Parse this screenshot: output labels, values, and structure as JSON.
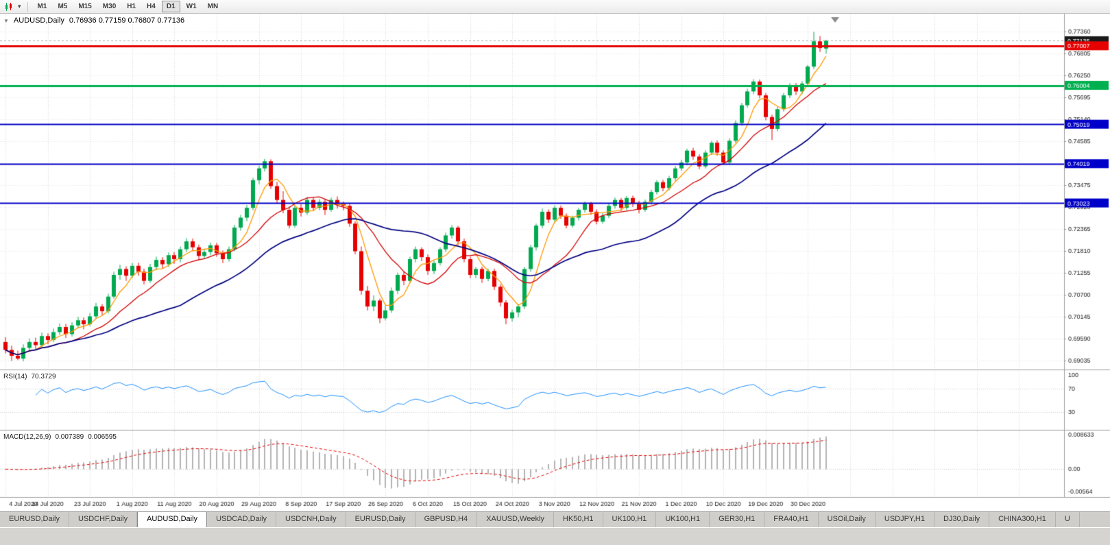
{
  "toolbar": {
    "timeframes": [
      "M1",
      "M5",
      "M15",
      "M30",
      "H1",
      "H4",
      "D1",
      "W1",
      "MN"
    ],
    "active_timeframe": "D1",
    "active_index": 6
  },
  "chart": {
    "title_symbol": "AUDUSD,Daily",
    "title_ohlc": "0.76936 0.77159 0.76807 0.77136",
    "colors": {
      "up": "#00a94f",
      "down": "#e60000",
      "background": "#ffffff",
      "grid": "#d9d9d9"
    },
    "price_axis": [
      "0.77360",
      "0.76805",
      "0.76250",
      "0.75695",
      "0.75140",
      "0.74585",
      "0.74030",
      "0.73475",
      "0.72920",
      "0.72365",
      "0.71810",
      "0.71255",
      "0.70700",
      "0.70145",
      "0.69590",
      "0.69035"
    ],
    "bid": {
      "value": 0.77135,
      "label": "0.77135",
      "color": "#1a1a1a"
    },
    "hlines": [
      {
        "value": 0.77007,
        "label": "0.77007",
        "color": "#e60000",
        "width": 3
      },
      {
        "value": 0.76004,
        "label": "0.76004",
        "color": "#00b050",
        "width": 3
      },
      {
        "value": 0.75019,
        "label": "0.75019",
        "color": "#0000c8",
        "width": 2
      },
      {
        "value": 0.74019,
        "label": "0.74019",
        "color": "#0000c8",
        "width": 2
      },
      {
        "value": 0.73023,
        "label": "0.73023",
        "color": "#0000c8",
        "width": 2
      }
    ],
    "mas": [
      {
        "period": 5,
        "color": "#ff9900",
        "width": 1.3
      },
      {
        "period": 12,
        "color": "#d40000",
        "width": 1.3
      },
      {
        "period": 30,
        "color": "#000080",
        "width": 1.7
      }
    ],
    "date_labels": [
      "4 Jul 2020",
      "14 Jul 2020",
      "23 Jul 2020",
      "1 Aug 2020",
      "11 Aug 2020",
      "20 Aug 2020",
      "29 Aug 2020",
      "8 Sep 2020",
      "17 Sep 2020",
      "26 Sep 2020",
      "6 Oct 2020",
      "15 Oct 2020",
      "24 Oct 2020",
      "3 Nov 2020",
      "12 Nov 2020",
      "21 Nov 2020",
      "1 Dec 2020",
      "10 Dec 2020",
      "19 Dec 2020",
      "30 Dec 2020"
    ],
    "candles": [
      [
        0.695,
        0.6962,
        0.6921,
        0.693
      ],
      [
        0.693,
        0.6941,
        0.6902,
        0.6915
      ],
      [
        0.6915,
        0.6928,
        0.6904,
        0.6908
      ],
      [
        0.6908,
        0.6944,
        0.6901,
        0.6935
      ],
      [
        0.6935,
        0.6959,
        0.6928,
        0.695
      ],
      [
        0.695,
        0.6961,
        0.693,
        0.6942
      ],
      [
        0.6942,
        0.6974,
        0.6936,
        0.6965
      ],
      [
        0.6965,
        0.6972,
        0.6944,
        0.6955
      ],
      [
        0.6955,
        0.6984,
        0.695,
        0.6975
      ],
      [
        0.6975,
        0.6997,
        0.6968,
        0.6988
      ],
      [
        0.6988,
        0.6996,
        0.696,
        0.697
      ],
      [
        0.697,
        0.7,
        0.6964,
        0.6992
      ],
      [
        0.6992,
        0.7014,
        0.6985,
        0.7005
      ],
      [
        0.7005,
        0.7012,
        0.6982,
        0.6995
      ],
      [
        0.6995,
        0.7023,
        0.699,
        0.7015
      ],
      [
        0.7015,
        0.7049,
        0.7008,
        0.704
      ],
      [
        0.704,
        0.7046,
        0.7018,
        0.7028
      ],
      [
        0.7028,
        0.7072,
        0.7022,
        0.7065
      ],
      [
        0.7065,
        0.7128,
        0.706,
        0.712
      ],
      [
        0.712,
        0.7146,
        0.7108,
        0.7135
      ],
      [
        0.7135,
        0.7142,
        0.7105,
        0.7118
      ],
      [
        0.7118,
        0.715,
        0.7112,
        0.7143
      ],
      [
        0.7143,
        0.7151,
        0.7118,
        0.7128
      ],
      [
        0.7128,
        0.7136,
        0.7096,
        0.7105
      ],
      [
        0.7105,
        0.7148,
        0.71,
        0.714
      ],
      [
        0.714,
        0.7166,
        0.7132,
        0.7158
      ],
      [
        0.7158,
        0.7165,
        0.7136,
        0.7147
      ],
      [
        0.7147,
        0.7177,
        0.714,
        0.717
      ],
      [
        0.717,
        0.7178,
        0.7148,
        0.716
      ],
      [
        0.716,
        0.7192,
        0.7152,
        0.7185
      ],
      [
        0.7185,
        0.7213,
        0.7178,
        0.7205
      ],
      [
        0.7205,
        0.7212,
        0.718,
        0.719
      ],
      [
        0.719,
        0.7197,
        0.7158,
        0.7168
      ],
      [
        0.7168,
        0.7186,
        0.716,
        0.7178
      ],
      [
        0.7178,
        0.7202,
        0.717,
        0.7195
      ],
      [
        0.7195,
        0.7201,
        0.7166,
        0.7175
      ],
      [
        0.7175,
        0.7182,
        0.715,
        0.716
      ],
      [
        0.716,
        0.7192,
        0.7154,
        0.7185
      ],
      [
        0.7185,
        0.7247,
        0.718,
        0.724
      ],
      [
        0.724,
        0.7272,
        0.7232,
        0.7265
      ],
      [
        0.7265,
        0.7297,
        0.7256,
        0.729
      ],
      [
        0.729,
        0.7366,
        0.7284,
        0.736
      ],
      [
        0.736,
        0.7397,
        0.735,
        0.739
      ],
      [
        0.739,
        0.7414,
        0.7382,
        0.7408
      ],
      [
        0.7408,
        0.7413,
        0.7338,
        0.7345
      ],
      [
        0.7345,
        0.7356,
        0.7302,
        0.731
      ],
      [
        0.731,
        0.7332,
        0.7276,
        0.7285
      ],
      [
        0.7285,
        0.7294,
        0.7238,
        0.7245
      ],
      [
        0.7245,
        0.7295,
        0.724,
        0.729
      ],
      [
        0.729,
        0.7299,
        0.7268,
        0.7278
      ],
      [
        0.7278,
        0.7318,
        0.7272,
        0.731
      ],
      [
        0.731,
        0.7316,
        0.7282,
        0.729
      ],
      [
        0.729,
        0.7312,
        0.7284,
        0.7305
      ],
      [
        0.7305,
        0.7311,
        0.7272,
        0.7285
      ],
      [
        0.7285,
        0.7316,
        0.728,
        0.731
      ],
      [
        0.731,
        0.7319,
        0.7288,
        0.73
      ],
      [
        0.73,
        0.7306,
        0.7284,
        0.7295
      ],
      [
        0.7295,
        0.7302,
        0.7242,
        0.725
      ],
      [
        0.725,
        0.7256,
        0.7172,
        0.718
      ],
      [
        0.718,
        0.7192,
        0.707,
        0.708
      ],
      [
        0.708,
        0.7092,
        0.703,
        0.704
      ],
      [
        0.704,
        0.7068,
        0.7028,
        0.7055
      ],
      [
        0.7055,
        0.706,
        0.6998,
        0.701
      ],
      [
        0.701,
        0.7042,
        0.7005,
        0.703
      ],
      [
        0.703,
        0.7088,
        0.7024,
        0.708
      ],
      [
        0.708,
        0.7126,
        0.7072,
        0.712
      ],
      [
        0.712,
        0.7128,
        0.7094,
        0.7105
      ],
      [
        0.7105,
        0.7166,
        0.71,
        0.716
      ],
      [
        0.716,
        0.7192,
        0.7152,
        0.7185
      ],
      [
        0.7185,
        0.719,
        0.7155,
        0.7165
      ],
      [
        0.7165,
        0.7172,
        0.712,
        0.713
      ],
      [
        0.713,
        0.7156,
        0.7122,
        0.715
      ],
      [
        0.715,
        0.719,
        0.7144,
        0.7185
      ],
      [
        0.7185,
        0.7227,
        0.7178,
        0.722
      ],
      [
        0.722,
        0.7246,
        0.7212,
        0.724
      ],
      [
        0.724,
        0.7244,
        0.7196,
        0.7205
      ],
      [
        0.7205,
        0.7212,
        0.7152,
        0.716
      ],
      [
        0.716,
        0.7166,
        0.7112,
        0.712
      ],
      [
        0.712,
        0.714,
        0.7112,
        0.7135
      ],
      [
        0.7135,
        0.7141,
        0.71,
        0.711
      ],
      [
        0.711,
        0.7136,
        0.7104,
        0.713
      ],
      [
        0.713,
        0.7136,
        0.7082,
        0.709
      ],
      [
        0.709,
        0.7096,
        0.704,
        0.705
      ],
      [
        0.705,
        0.7056,
        0.6995,
        0.701
      ],
      [
        0.701,
        0.7032,
        0.7002,
        0.7025
      ],
      [
        0.7025,
        0.7046,
        0.7012,
        0.704
      ],
      [
        0.704,
        0.714,
        0.7034,
        0.7135
      ],
      [
        0.7135,
        0.7196,
        0.7128,
        0.719
      ],
      [
        0.719,
        0.725,
        0.7182,
        0.7245
      ],
      [
        0.7245,
        0.7288,
        0.7238,
        0.728
      ],
      [
        0.728,
        0.7286,
        0.7252,
        0.726
      ],
      [
        0.726,
        0.7296,
        0.7254,
        0.729
      ],
      [
        0.729,
        0.7296,
        0.7262,
        0.727
      ],
      [
        0.727,
        0.7276,
        0.7238,
        0.7245
      ],
      [
        0.7245,
        0.727,
        0.724,
        0.7265
      ],
      [
        0.7265,
        0.729,
        0.7258,
        0.7285
      ],
      [
        0.7285,
        0.7306,
        0.7278,
        0.73
      ],
      [
        0.73,
        0.7305,
        0.7272,
        0.728
      ],
      [
        0.728,
        0.7286,
        0.7248,
        0.7255
      ],
      [
        0.7255,
        0.7276,
        0.725,
        0.727
      ],
      [
        0.727,
        0.73,
        0.7264,
        0.7295
      ],
      [
        0.7295,
        0.7316,
        0.7288,
        0.731
      ],
      [
        0.731,
        0.7315,
        0.7282,
        0.729
      ],
      [
        0.729,
        0.732,
        0.7284,
        0.7315
      ],
      [
        0.7315,
        0.7321,
        0.7292,
        0.73
      ],
      [
        0.73,
        0.7308,
        0.7276,
        0.7285
      ],
      [
        0.7285,
        0.7311,
        0.728,
        0.7305
      ],
      [
        0.7305,
        0.7336,
        0.7298,
        0.733
      ],
      [
        0.733,
        0.736,
        0.7324,
        0.7355
      ],
      [
        0.7355,
        0.7361,
        0.7332,
        0.734
      ],
      [
        0.734,
        0.7371,
        0.7334,
        0.7365
      ],
      [
        0.7365,
        0.7396,
        0.7358,
        0.739
      ],
      [
        0.739,
        0.7412,
        0.7384,
        0.7405
      ],
      [
        0.7405,
        0.744,
        0.7398,
        0.7435
      ],
      [
        0.7435,
        0.7442,
        0.7412,
        0.742
      ],
      [
        0.742,
        0.7426,
        0.7388,
        0.7395
      ],
      [
        0.7395,
        0.7436,
        0.739,
        0.743
      ],
      [
        0.743,
        0.746,
        0.7424,
        0.7455
      ],
      [
        0.7455,
        0.7461,
        0.7422,
        0.743
      ],
      [
        0.743,
        0.7436,
        0.7398,
        0.7405
      ],
      [
        0.7405,
        0.7466,
        0.74,
        0.746
      ],
      [
        0.746,
        0.7512,
        0.7454,
        0.7505
      ],
      [
        0.7505,
        0.7556,
        0.7498,
        0.755
      ],
      [
        0.755,
        0.7592,
        0.7544,
        0.7585
      ],
      [
        0.7585,
        0.7616,
        0.7578,
        0.761
      ],
      [
        0.761,
        0.7615,
        0.7568,
        0.7575
      ],
      [
        0.7575,
        0.7581,
        0.7512,
        0.752
      ],
      [
        0.752,
        0.7526,
        0.7462,
        0.749
      ],
      [
        0.749,
        0.7546,
        0.7484,
        0.754
      ],
      [
        0.754,
        0.7581,
        0.7534,
        0.7575
      ],
      [
        0.7575,
        0.7606,
        0.7568,
        0.76
      ],
      [
        0.76,
        0.7606,
        0.7576,
        0.7585
      ],
      [
        0.7585,
        0.7611,
        0.7578,
        0.7605
      ],
      [
        0.7605,
        0.7652,
        0.7598,
        0.7648
      ],
      [
        0.7648,
        0.7736,
        0.7642,
        0.7712
      ],
      [
        0.7712,
        0.7725,
        0.7685,
        0.7695
      ],
      [
        0.76936,
        0.77159,
        0.76807,
        0.77136
      ]
    ]
  },
  "rsi": {
    "name": "RSI(14)",
    "value": "70.3729",
    "color": "#1e90ff",
    "levels": [
      70,
      30
    ],
    "axis": [
      {
        "label": "100",
        "value": 100
      },
      {
        "label": "70",
        "value": 70
      },
      {
        "label": "30",
        "value": 30
      }
    ]
  },
  "macd": {
    "name": "MACD(12,26,9)",
    "value_main": "0.007389",
    "value_signal": "0.006595",
    "hist_color": "#b4b4b4",
    "signal_color": "#e60000",
    "axis": [
      {
        "label": "0.008633",
        "value": 0.008633
      },
      {
        "label": "0.00",
        "value": 0
      },
      {
        "label": "-0.00564",
        "value": -0.00564
      }
    ]
  },
  "tabs": {
    "items": [
      "EURUSD,Daily",
      "USDCHF,Daily",
      "AUDUSD,Daily",
      "USDCAD,Daily",
      "USDCNH,Daily",
      "EURUSD,Daily",
      "GBPUSD,H4",
      "XAUUSD,Weekly",
      "HK50,H1",
      "UK100,H1",
      "UK100,H1",
      "GER30,H1",
      "FRA40,H1",
      "USOil,Daily",
      "USDJPY,H1",
      "DJ30,Daily",
      "CHINA300,H1",
      "U"
    ],
    "active_index": 2
  }
}
